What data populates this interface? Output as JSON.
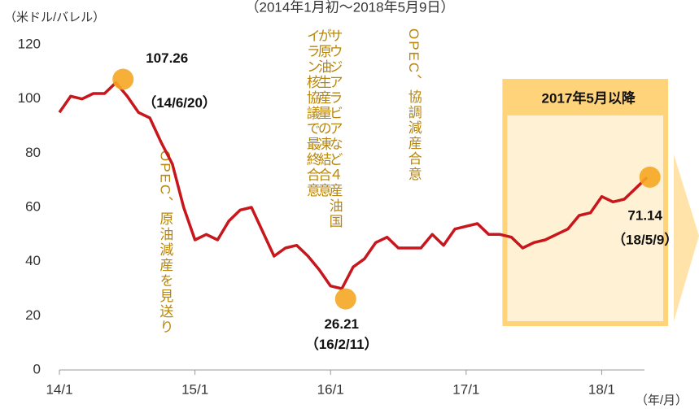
{
  "chart_data": {
    "type": "line",
    "title": "（2014年1月初～2018年5月9日）",
    "y_axis_label": "（米ドル/バレル）",
    "x_axis_label": "（年/月）",
    "x": [
      "14/1",
      "14/2",
      "14/3",
      "14/4",
      "14/5",
      "14/6",
      "14/7",
      "14/8",
      "14/9",
      "14/10",
      "14/11",
      "14/12",
      "15/1",
      "15/2",
      "15/3",
      "15/4",
      "15/5",
      "15/6",
      "15/7",
      "15/8",
      "15/9",
      "15/10",
      "15/11",
      "15/12",
      "16/1",
      "16/2",
      "16/3",
      "16/4",
      "16/5",
      "16/6",
      "16/7",
      "16/8",
      "16/9",
      "16/10",
      "16/11",
      "16/12",
      "17/1",
      "17/2",
      "17/3",
      "17/4",
      "17/5",
      "17/6",
      "17/7",
      "17/8",
      "17/9",
      "17/10",
      "17/11",
      "17/12",
      "18/1",
      "18/2",
      "18/3",
      "18/4",
      "18/5"
    ],
    "series": [
      {
        "color": "#c8161d",
        "values": [
          95,
          101,
          100,
          102,
          102,
          106,
          101,
          95,
          93,
          84,
          76,
          60,
          48,
          50,
          48,
          55,
          59,
          60,
          51,
          42,
          45,
          46,
          42,
          37,
          31,
          30,
          38,
          41,
          47,
          49,
          45,
          45,
          45,
          50,
          46,
          52,
          53,
          54,
          50,
          50,
          49,
          45,
          47,
          48,
          50,
          52,
          57,
          58,
          64,
          62,
          63,
          67,
          71
        ]
      }
    ],
    "xlim": [
      "14/1",
      "18/5"
    ],
    "xticks": [
      "14/1",
      "15/1",
      "16/1",
      "17/1",
      "18/1"
    ],
    "ylim": [
      0,
      120
    ],
    "yticks": [
      0,
      20,
      40,
      60,
      80,
      100,
      120
    ],
    "highlights": [
      {
        "value": 107.26,
        "date": "（14/6/20）"
      },
      {
        "value": 26.21,
        "date": "（16/2/11）"
      },
      {
        "value": 71.14,
        "date": "（18/5/9）"
      }
    ],
    "period": {
      "label": "2017年5月以降",
      "start": "17/5"
    },
    "annotations": [
      {
        "text": "OPEC、原油減産を見送り",
        "x": "14/11"
      },
      {
        "text": "イラン核協議で最終合意",
        "x": "15/12"
      },
      {
        "text": "サウジアラビアなど４産油国",
        "x": "16/2"
      },
      {
        "text": "が原油生産量の凍結合意",
        "x": "16/1"
      },
      {
        "text": "OPEC、協調減産合意",
        "x": "16/9"
      }
    ]
  }
}
